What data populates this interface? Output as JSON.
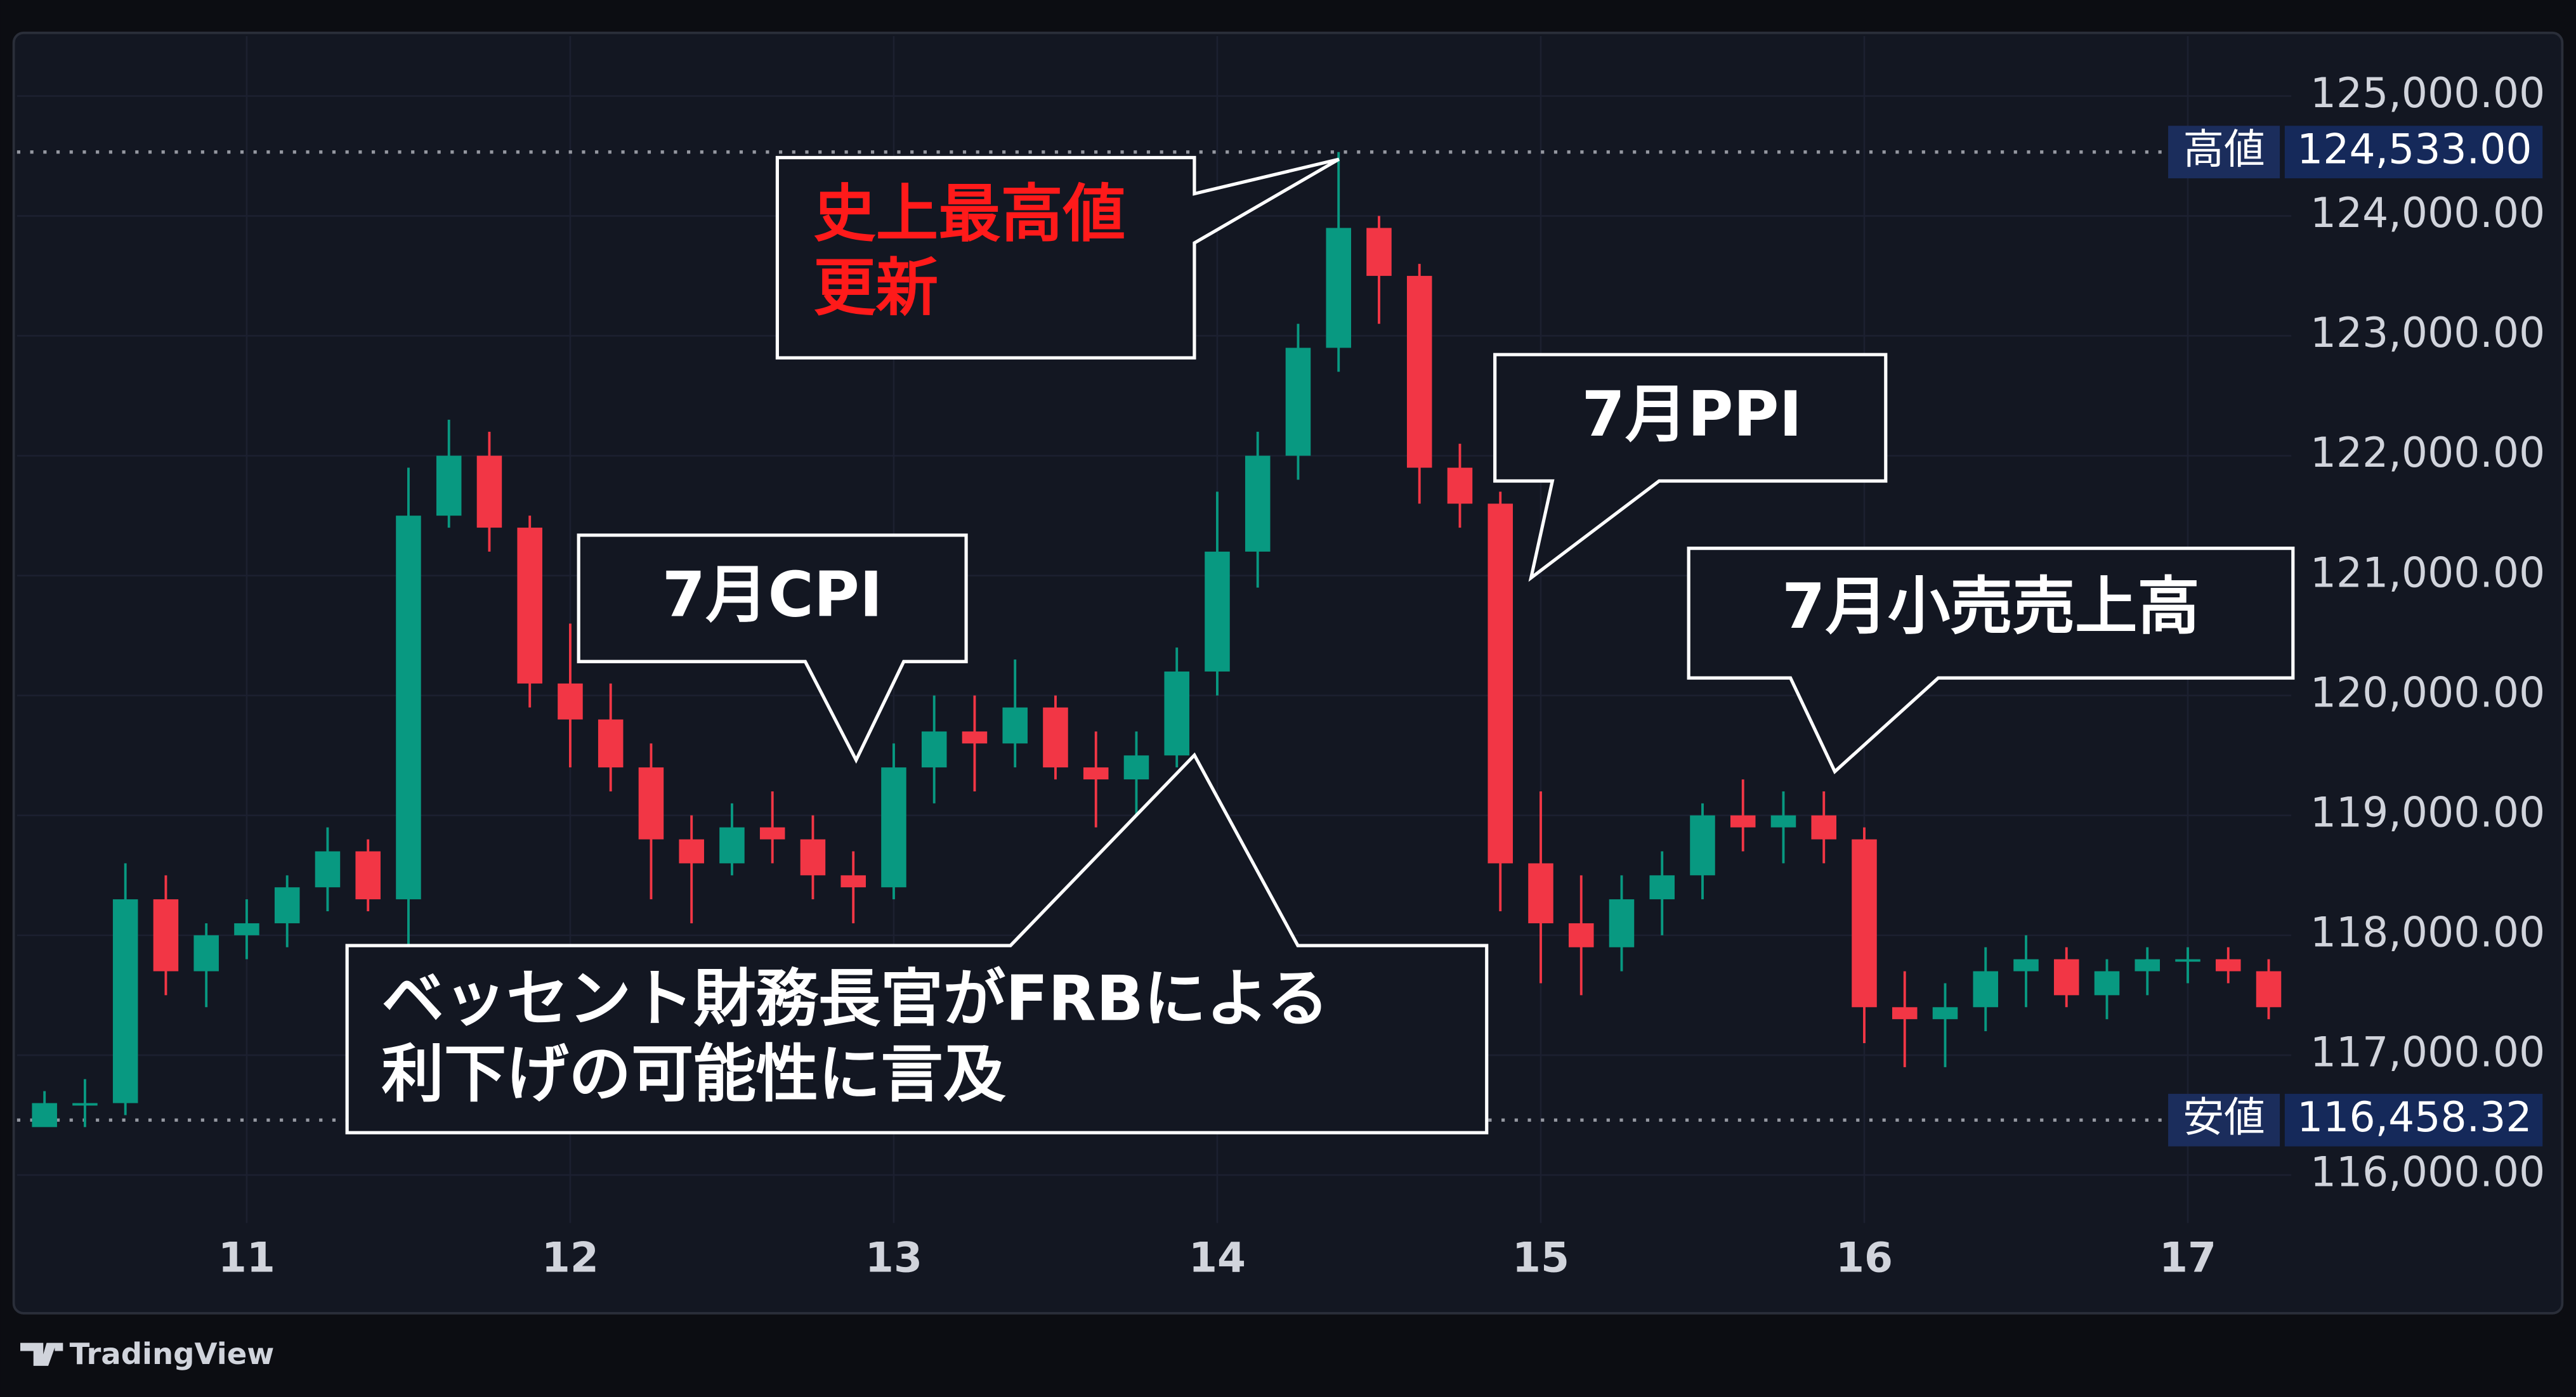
{
  "chart_data": {
    "type": "candlestick",
    "x": [
      10.375,
      10.5,
      10.625,
      10.75,
      10.875,
      11,
      11.125,
      11.25,
      11.375,
      11.5,
      11.625,
      11.75,
      11.875,
      12,
      12.125,
      12.25,
      12.375,
      12.5,
      12.625,
      12.75,
      12.875,
      13,
      13.125,
      13.25,
      13.375,
      13.5,
      13.625,
      13.75,
      13.875,
      14,
      14.125,
      14.25,
      14.375,
      14.5,
      14.625,
      14.75,
      14.875,
      15,
      15.125,
      15.25,
      15.375,
      15.5,
      15.625,
      15.75,
      15.875,
      16,
      16.125,
      16.25,
      16.375,
      16.5,
      16.625,
      16.75,
      16.875,
      17,
      17.125,
      17.25
    ],
    "open": [
      116400,
      116600,
      116600,
      118300,
      117700,
      118000,
      118100,
      118400,
      118700,
      118300,
      121500,
      122000,
      121400,
      120100,
      119800,
      119400,
      118800,
      118600,
      118900,
      118800,
      118500,
      118400,
      119400,
      119700,
      119600,
      119900,
      119400,
      119300,
      119500,
      120200,
      121200,
      122000,
      122900,
      123900,
      123500,
      121900,
      121600,
      118600,
      118100,
      117900,
      118300,
      118500,
      119000,
      118900,
      119000,
      118800,
      117400,
      117300,
      117400,
      117700,
      117800,
      117500,
      117700,
      117800,
      117800,
      117700
    ],
    "high": [
      116700,
      116800,
      118600,
      118500,
      118100,
      118300,
      118500,
      118900,
      118800,
      121900,
      122300,
      122200,
      121500,
      120600,
      120100,
      119600,
      119000,
      119100,
      119200,
      119000,
      118700,
      119600,
      120000,
      120000,
      120300,
      120000,
      119700,
      119700,
      120400,
      121700,
      122200,
      123100,
      124533,
      124000,
      123600,
      122100,
      121700,
      119200,
      118500,
      118500,
      118700,
      119100,
      119300,
      119200,
      119200,
      118900,
      117700,
      117600,
      117900,
      118000,
      117900,
      117800,
      117900,
      117900,
      117900,
      117800
    ],
    "low": [
      116458.32,
      116400,
      116500,
      117500,
      117400,
      117800,
      117900,
      118200,
      118200,
      117900,
      121400,
      121200,
      119900,
      119400,
      119200,
      118300,
      118100,
      118500,
      118600,
      118300,
      118100,
      118300,
      119100,
      119200,
      119400,
      119300,
      118900,
      118900,
      119400,
      120000,
      120900,
      121800,
      122700,
      123100,
      121600,
      121400,
      118200,
      117600,
      117500,
      117700,
      118000,
      118300,
      118700,
      118600,
      118600,
      117100,
      116900,
      116900,
      117200,
      117400,
      117400,
      117300,
      117500,
      117600,
      117600,
      117300
    ],
    "close": [
      116600,
      116600,
      118300,
      117700,
      118000,
      118100,
      118400,
      118700,
      118300,
      121500,
      122000,
      121400,
      120100,
      119800,
      119400,
      118800,
      118600,
      118900,
      118800,
      118500,
      118400,
      119400,
      119700,
      119600,
      119900,
      119400,
      119300,
      119500,
      120200,
      121200,
      122000,
      122900,
      123900,
      123500,
      121900,
      121600,
      118600,
      118100,
      117900,
      118300,
      118500,
      119000,
      118900,
      119000,
      118800,
      117400,
      117300,
      117400,
      117700,
      117800,
      117500,
      117700,
      117800,
      117800,
      117700,
      117400
    ],
    "up_color": "#089981",
    "down_color": "#f23645",
    "xlim": [
      10.29,
      17.32
    ],
    "xticks": [
      11,
      12,
      13,
      14,
      15,
      16,
      17
    ],
    "ylim": [
      115600,
      125500
    ],
    "yticks": [
      {
        "value": 116000,
        "label": "116,000.00"
      },
      {
        "value": 117000,
        "label": "117,000.00"
      },
      {
        "value": 118000,
        "label": "118,000.00"
      },
      {
        "value": 119000,
        "label": "119,000.00"
      },
      {
        "value": 120000,
        "label": "120,000.00"
      },
      {
        "value": 121000,
        "label": "121,000.00"
      },
      {
        "value": 122000,
        "label": "122,000.00"
      },
      {
        "value": 123000,
        "label": "123,000.00"
      },
      {
        "value": 124000,
        "label": "124,000.00"
      },
      {
        "value": 125000,
        "label": "125,000.00"
      }
    ],
    "grid": true,
    "reference_lines": [
      {
        "label": "高値",
        "value": 124533,
        "value_label": "124,533.00"
      },
      {
        "label": "安値",
        "value": 116458.32,
        "value_label": "116,458.32"
      }
    ],
    "annotations": [
      {
        "lines": [
          "史上最高値",
          "更新"
        ],
        "color": "#ff1a1a"
      },
      {
        "lines": [
          "7月CPI"
        ],
        "color": "#ffffff"
      },
      {
        "lines": [
          "7月PPI"
        ],
        "color": "#ffffff"
      },
      {
        "lines": [
          "7月小売売上高"
        ],
        "color": "#ffffff"
      },
      {
        "lines": [
          "ベッセント財務長官がFRBによる",
          "利下げの可能性に言及"
        ],
        "color": "#ffffff"
      }
    ],
    "footer": "TradingView"
  }
}
